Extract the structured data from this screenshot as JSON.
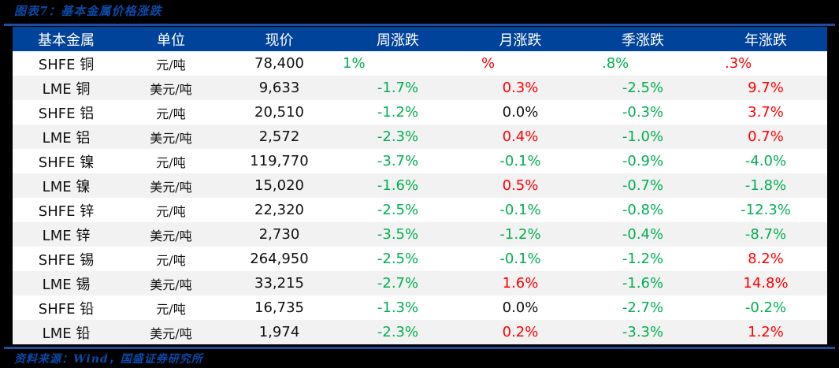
{
  "title": "图表7：基本金属价格涨跌",
  "source": "资料来源：Wind，国盛证券研究所",
  "colors": {
    "header_bg": "#00439a",
    "rule": "#1f4ea1",
    "up": "#ff0000",
    "down": "#00b050",
    "row_alt": "#f2f2f2"
  },
  "table": {
    "headers": [
      "基本金属",
      "单位",
      "现价",
      "周涨跌",
      "月涨跌",
      "季涨跌",
      "年涨跌"
    ],
    "rows": [
      {
        "metal": "SHFE 铜",
        "unit": "元/吨",
        "price": "78,400",
        "week": "1%",
        "month": "%",
        "quarter": ".8%",
        "year": ".3%"
      },
      {
        "metal": "LME 铜",
        "unit": "美元/吨",
        "price": "9,633",
        "week": "-1.7%",
        "month": "0.3%",
        "quarter": "-2.5%",
        "year": "9.7%"
      },
      {
        "metal": "SHFE 铝",
        "unit": "元/吨",
        "price": "20,510",
        "week": "-1.2%",
        "month": "0.0%",
        "quarter": "-0.3%",
        "year": "3.7%"
      },
      {
        "metal": "LME 铝",
        "unit": "美元/吨",
        "price": "2,572",
        "week": "-2.3%",
        "month": "0.4%",
        "quarter": "-1.0%",
        "year": "0.7%"
      },
      {
        "metal": "SHFE 镍",
        "unit": "元/吨",
        "price": "119,770",
        "week": "-3.7%",
        "month": "-0.1%",
        "quarter": "-0.9%",
        "year": "-4.0%"
      },
      {
        "metal": "LME 镍",
        "unit": "美元/吨",
        "price": "15,020",
        "week": "-1.6%",
        "month": "0.5%",
        "quarter": "-0.7%",
        "year": "-1.8%"
      },
      {
        "metal": "SHFE 锌",
        "unit": "元/吨",
        "price": "22,320",
        "week": "-2.5%",
        "month": "-0.1%",
        "quarter": "-0.8%",
        "year": "-12.3%"
      },
      {
        "metal": "LME 锌",
        "unit": "美元/吨",
        "price": "2,730",
        "week": "-3.5%",
        "month": "-1.2%",
        "quarter": "-0.4%",
        "year": "-8.7%"
      },
      {
        "metal": "SHFE 锡",
        "unit": "元/吨",
        "price": "264,950",
        "week": "-2.5%",
        "month": "-0.1%",
        "quarter": "-1.2%",
        "year": "8.2%"
      },
      {
        "metal": "LME 锡",
        "unit": "美元/吨",
        "price": "33,215",
        "week": "-2.7%",
        "month": "1.6%",
        "quarter": "-1.6%",
        "year": "14.8%"
      },
      {
        "metal": "SHFE 铅",
        "unit": "元/吨",
        "price": "16,735",
        "week": "-1.3%",
        "month": "0.0%",
        "quarter": "-2.7%",
        "year": "-0.2%"
      },
      {
        "metal": "LME 铅",
        "unit": "美元/吨",
        "price": "1,974",
        "week": "-2.3%",
        "month": "0.2%",
        "quarter": "-3.3%",
        "year": "1.2%"
      }
    ]
  }
}
